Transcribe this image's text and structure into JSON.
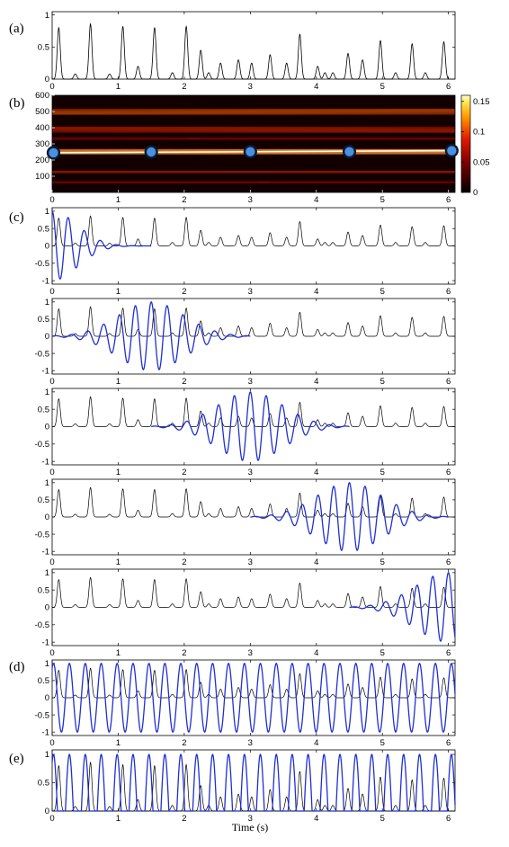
{
  "figure": {
    "panel_labels": [
      "(a)",
      "(b)",
      "(c)",
      "(d)",
      "(e)"
    ],
    "xlabel": "Time (s)",
    "colors": {
      "signal": "#000000",
      "wave": "#1f2fd6",
      "dot_fill": "#4a90e2",
      "dot_edge": "#0b1a33"
    }
  },
  "chart_data": [
    {
      "panel": "(a)",
      "type": "line",
      "xlim": [
        0,
        6.1
      ],
      "ylim": [
        0,
        1.05
      ],
      "xticks": [
        0,
        1,
        2,
        3,
        4,
        5,
        6
      ],
      "yticks": [
        0,
        0.5,
        1
      ],
      "series": [
        {
          "peaks": [
            {
              "t": 0.1,
              "h": 0.8
            },
            {
              "t": 0.35,
              "h": 0.08
            },
            {
              "t": 0.58,
              "h": 0.86
            },
            {
              "t": 0.87,
              "h": 0.08
            },
            {
              "t": 1.07,
              "h": 0.82
            },
            {
              "t": 1.3,
              "h": 0.2
            },
            {
              "t": 1.55,
              "h": 0.8
            },
            {
              "t": 1.82,
              "h": 0.1
            },
            {
              "t": 2.03,
              "h": 0.82
            },
            {
              "t": 2.25,
              "h": 0.45
            },
            {
              "t": 2.37,
              "h": 0.1
            },
            {
              "t": 2.55,
              "h": 0.25
            },
            {
              "t": 2.82,
              "h": 0.3
            },
            {
              "t": 3.02,
              "h": 0.25
            },
            {
              "t": 3.3,
              "h": 0.38
            },
            {
              "t": 3.55,
              "h": 0.25
            },
            {
              "t": 3.75,
              "h": 0.7
            },
            {
              "t": 4.02,
              "h": 0.2
            },
            {
              "t": 4.13,
              "h": 0.1
            },
            {
              "t": 4.25,
              "h": 0.1
            },
            {
              "t": 4.48,
              "h": 0.4
            },
            {
              "t": 4.7,
              "h": 0.3
            },
            {
              "t": 4.97,
              "h": 0.6
            },
            {
              "t": 5.2,
              "h": 0.1
            },
            {
              "t": 5.45,
              "h": 0.55
            },
            {
              "t": 5.65,
              "h": 0.1
            },
            {
              "t": 5.93,
              "h": 0.58
            }
          ]
        }
      ]
    },
    {
      "panel": "(b)",
      "type": "heatmap",
      "xlim": [
        0,
        6.1
      ],
      "ylim": [
        0,
        600
      ],
      "xticks": [
        0,
        1,
        2,
        3,
        4,
        5,
        6
      ],
      "yticks": [
        100,
        200,
        300,
        400,
        500,
        600
      ],
      "colorbar": {
        "min": 0,
        "max": 0.16,
        "ticks": [
          0,
          0.05,
          0.1,
          0.15
        ]
      },
      "ridges": [
        {
          "y0": 245,
          "y1": 258,
          "intensity": 1.0
        },
        {
          "y0": 490,
          "y1": 505,
          "intensity": 0.62
        },
        {
          "y0": 395,
          "y1": 380,
          "intensity": 0.42
        },
        {
          "y0": 125,
          "y1": 130,
          "intensity": 0.38
        },
        {
          "y0": 330,
          "y1": 335,
          "intensity": 0.2
        },
        {
          "y0": 60,
          "y1": 65,
          "intensity": 0.18
        }
      ],
      "markers": [
        {
          "t": 0.02,
          "y": 245
        },
        {
          "t": 1.5,
          "y": 250
        },
        {
          "t": 3.0,
          "y": 252
        },
        {
          "t": 4.5,
          "y": 252
        },
        {
          "t": 6.05,
          "y": 258
        }
      ]
    },
    {
      "panel": "(c)",
      "type": "line",
      "subplots": [
        {
          "center": 0.0,
          "freq": 4.1,
          "sigma": 0.38,
          "xlim": [
            0,
            6.1
          ],
          "ylim": [
            -1.1,
            1.1
          ]
        },
        {
          "center": 1.5,
          "freq": 4.15,
          "sigma": 0.5,
          "xlim": [
            0,
            6.1
          ],
          "ylim": [
            -1.1,
            1.1
          ]
        },
        {
          "center": 3.0,
          "freq": 4.15,
          "sigma": 0.5,
          "xlim": [
            0,
            6.1
          ],
          "ylim": [
            -1.1,
            1.1
          ]
        },
        {
          "center": 4.5,
          "freq": 4.2,
          "sigma": 0.5,
          "xlim": [
            0,
            6.1
          ],
          "ylim": [
            -1.1,
            1.1
          ]
        },
        {
          "center": 6.0,
          "freq": 4.2,
          "sigma": 0.5,
          "xlim": [
            0,
            6.1
          ],
          "ylim": [
            -1.1,
            1.1
          ]
        }
      ],
      "xticks": [
        0,
        1,
        2,
        3,
        4,
        5,
        6
      ],
      "yticks": [
        -1,
        -0.5,
        0,
        0.5,
        1
      ]
    },
    {
      "panel": "(d)",
      "type": "line",
      "freq": 4.15,
      "xlim": [
        0,
        6.1
      ],
      "ylim": [
        -1.1,
        1.1
      ],
      "xticks": [
        0,
        1,
        2,
        3,
        4,
        5,
        6
      ],
      "yticks": [
        -1,
        -0.5,
        0,
        0.5,
        1
      ]
    },
    {
      "panel": "(e)",
      "type": "line",
      "freq": 4.15,
      "xlim": [
        0,
        6.1
      ],
      "ylim": [
        0,
        1.08
      ],
      "xticks": [
        0,
        1,
        2,
        3,
        4,
        5,
        6
      ],
      "yticks": [
        0,
        0.5,
        1
      ]
    }
  ]
}
